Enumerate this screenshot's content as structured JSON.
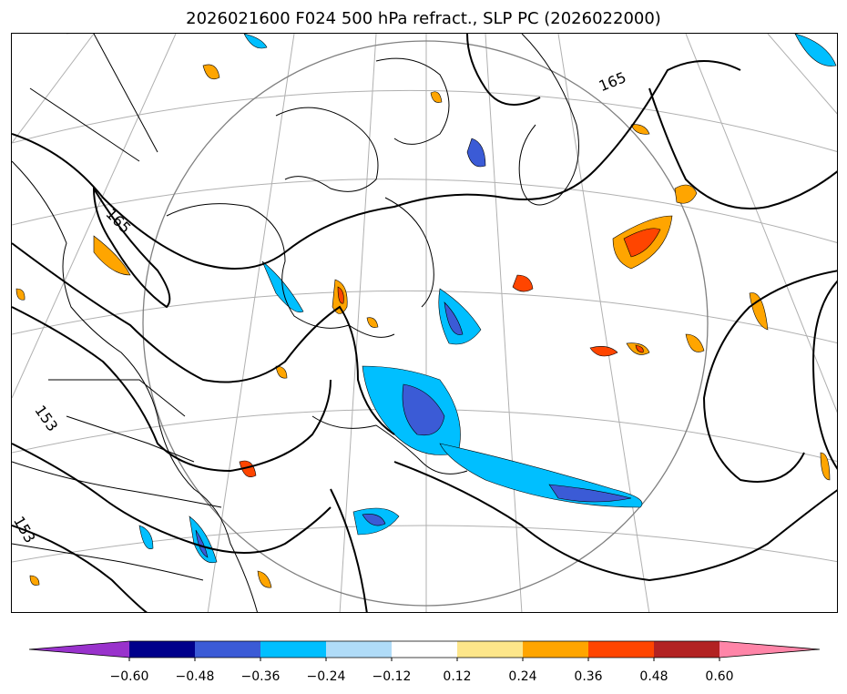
{
  "title": "2026021600 F024 500 hPa refract., SLP PC (2026022000)",
  "contour_labels": [
    "165",
    "165",
    "153",
    "153"
  ],
  "colorbar": {
    "colors": [
      "#9932cc",
      "#00008b",
      "#3b5bd6",
      "#00bfff",
      "#b0dcf8",
      "#ffffff",
      "#fde68a",
      "#ffa500",
      "#ff4500",
      "#b22222",
      "#ff85a8"
    ],
    "ticks": [
      "−0.60",
      "−0.48",
      "−0.36",
      "−0.24",
      "−0.12",
      "0.12",
      "0.24",
      "0.36",
      "0.48",
      "0.60"
    ]
  },
  "map": {
    "coastline_color": "#000000",
    "graticule_color": "#b0b0b0",
    "circle_color": "#808080"
  }
}
